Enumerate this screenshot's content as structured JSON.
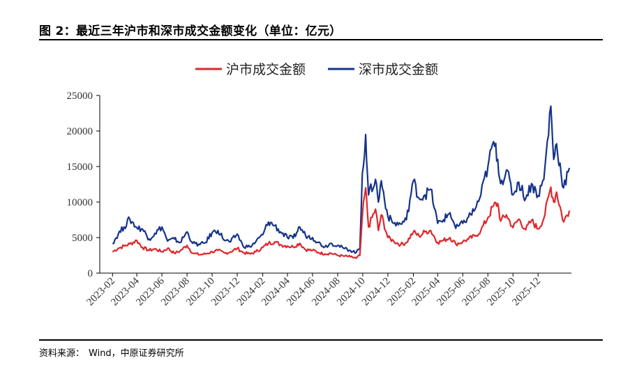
{
  "figure": {
    "title": "图 2：最近三年沪市和深市成交金额变化（单位：亿元）",
    "source_label": "资料来源：",
    "source_text": "Wind，中原证券研究所"
  },
  "chart_data": {
    "type": "line",
    "title": "图 2：最近三年沪市和深市成交金额变化（单位：亿元）",
    "xlabel": "",
    "ylabel": "",
    "ylim": [
      0,
      25000
    ],
    "yticks": [
      "0",
      "5000",
      "10000",
      "15000",
      "20000",
      "25000"
    ],
    "xticks": [
      "2023-02",
      "2023-04",
      "2023-06",
      "2023-08",
      "2023-10",
      "2023-12",
      "2024-02",
      "2024-04",
      "2024-06",
      "2024-08",
      "2024-10",
      "2024-12",
      "2025-02",
      "2025-04",
      "2025-06",
      "2025-08",
      "2025-10",
      "2025-12"
    ],
    "legend_position": "top-center",
    "x": [
      "2023-02-01",
      "2023-02-15",
      "2023-03-01",
      "2023-03-15",
      "2023-04-01",
      "2023-04-15",
      "2023-05-01",
      "2023-05-15",
      "2023-06-01",
      "2023-06-15",
      "2023-07-01",
      "2023-07-15",
      "2023-08-01",
      "2023-08-15",
      "2023-09-01",
      "2023-09-15",
      "2023-10-01",
      "2023-10-15",
      "2023-11-01",
      "2023-11-15",
      "2023-12-01",
      "2023-12-15",
      "2024-01-01",
      "2024-01-15",
      "2024-02-01",
      "2024-02-15",
      "2024-03-01",
      "2024-03-15",
      "2024-04-01",
      "2024-04-15",
      "2024-05-01",
      "2024-05-15",
      "2024-06-01",
      "2024-06-15",
      "2024-07-01",
      "2024-07-15",
      "2024-08-01",
      "2024-08-15",
      "2024-09-01",
      "2024-09-15",
      "2024-09-24",
      "2024-09-30",
      "2024-10-08",
      "2024-10-15",
      "2024-11-01",
      "2024-11-08",
      "2024-11-15",
      "2024-12-01",
      "2024-12-15",
      "2025-01-01",
      "2025-01-15",
      "2025-02-01",
      "2025-02-15",
      "2025-03-01",
      "2025-03-15",
      "2025-04-01",
      "2025-04-15",
      "2025-05-01",
      "2025-05-15",
      "2025-06-01",
      "2025-06-15",
      "2025-07-01",
      "2025-07-15",
      "2025-08-01",
      "2025-08-15",
      "2025-08-25",
      "2025-09-01",
      "2025-09-15",
      "2025-10-01",
      "2025-10-15",
      "2025-11-01",
      "2025-11-15",
      "2025-12-01",
      "2025-12-15",
      "2026-01-01",
      "2026-01-08",
      "2026-01-15",
      "2026-02-01",
      "2026-02-15"
    ],
    "series": [
      {
        "name": "沪市成交金额",
        "color": "#e0262b",
        "values": [
          3000,
          3500,
          3800,
          4100,
          4600,
          3600,
          3200,
          3400,
          3000,
          3500,
          2800,
          3100,
          3900,
          2800,
          2600,
          2700,
          3000,
          3200,
          2800,
          3000,
          3500,
          2900,
          2700,
          3000,
          3600,
          4200,
          4400,
          4000,
          3800,
          3700,
          4200,
          3300,
          3200,
          2900,
          2700,
          2800,
          2500,
          2400,
          2300,
          2100,
          2500,
          8000,
          12000,
          6500,
          9000,
          6000,
          8200,
          5000,
          4500,
          4000,
          4300,
          5800,
          5200,
          5800,
          6000,
          4300,
          4600,
          5000,
          4100,
          4400,
          4800,
          5200,
          6000,
          7800,
          9500,
          9800,
          7300,
          8200,
          6400,
          7600,
          6100,
          7400,
          6200,
          7700,
          12100,
          10000,
          11400,
          7200,
          8800
        ]
      },
      {
        "name": "深市成交金额",
        "color": "#15338a",
        "values": [
          4200,
          5500,
          6500,
          7600,
          6400,
          6200,
          4800,
          5600,
          6500,
          4500,
          4800,
          4300,
          5800,
          4200,
          4000,
          4300,
          5700,
          6000,
          4600,
          4400,
          5500,
          3800,
          3700,
          4400,
          5400,
          7200,
          6700,
          5800,
          5000,
          4900,
          6500,
          5300,
          5000,
          4300,
          3700,
          4200,
          3900,
          3500,
          3200,
          2900,
          3500,
          14000,
          19500,
          11000,
          13200,
          10000,
          13000,
          8000,
          7000,
          6900,
          7500,
          13000,
          10500,
          11000,
          11800,
          7000,
          7500,
          8500,
          6300,
          7000,
          7900,
          9000,
          11000,
          15000,
          18500,
          16000,
          12600,
          14500,
          11000,
          12800,
          10500,
          12600,
          10900,
          13200,
          23500,
          16000,
          18200,
          12000,
          14800
        ]
      }
    ]
  }
}
